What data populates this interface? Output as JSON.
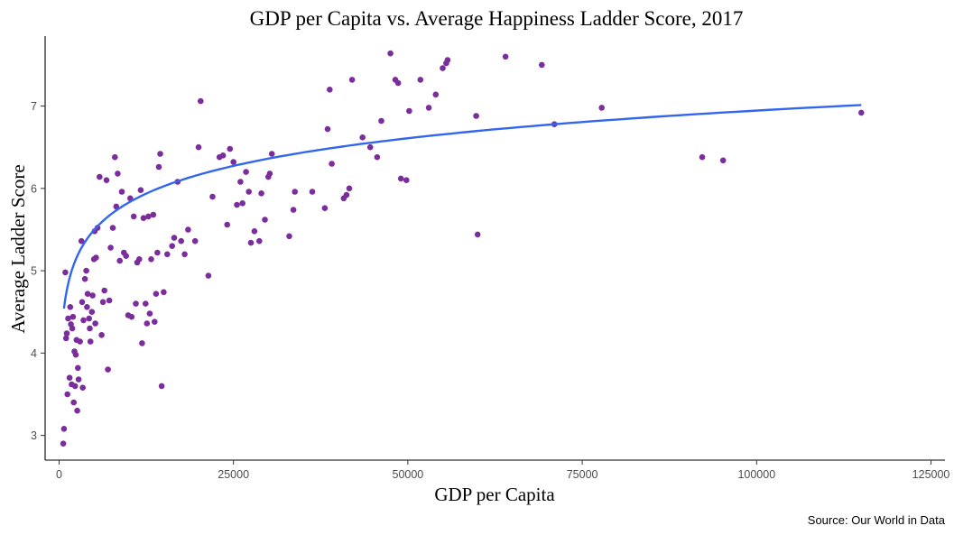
{
  "colors": {
    "point": "#7b2d9c",
    "trend": "#3366ee",
    "axis": "#000000",
    "tick_text": "#4d4d4d"
  },
  "chart_data": {
    "type": "scatter",
    "title": "GDP per Capita vs. Average Happiness Ladder Score, 2017",
    "xlabel": "GDP per Capita",
    "ylabel": "Average Ladder Score",
    "caption": "Source: Our World in Data",
    "xlim": [
      -2000,
      127000
    ],
    "ylim": [
      2.7,
      7.85
    ],
    "x_ticks": [
      0,
      25000,
      50000,
      75000,
      100000,
      125000
    ],
    "x_tick_labels": [
      "0",
      "25000",
      "50000",
      "75000",
      "100000",
      "125000"
    ],
    "y_ticks": [
      3,
      4,
      5,
      6,
      7
    ],
    "y_tick_labels": [
      "3",
      "4",
      "5",
      "6",
      "7"
    ],
    "grid": false,
    "legend": "none",
    "trend": {
      "type": "logarithmic-fit",
      "x_range": [
        700,
        115000
      ],
      "intercept": 1.365,
      "log_coefficient": 0.4847
    },
    "points": [
      {
        "x": 600,
        "y": 2.9
      },
      {
        "x": 700,
        "y": 3.08
      },
      {
        "x": 900,
        "y": 4.98
      },
      {
        "x": 1000,
        "y": 4.18
      },
      {
        "x": 1100,
        "y": 4.24
      },
      {
        "x": 1200,
        "y": 3.5
      },
      {
        "x": 1300,
        "y": 4.42
      },
      {
        "x": 1500,
        "y": 3.7
      },
      {
        "x": 1600,
        "y": 4.56
      },
      {
        "x": 1700,
        "y": 4.35
      },
      {
        "x": 1800,
        "y": 3.62
      },
      {
        "x": 1900,
        "y": 4.3
      },
      {
        "x": 2000,
        "y": 4.44
      },
      {
        "x": 2100,
        "y": 3.4
      },
      {
        "x": 2200,
        "y": 4.02
      },
      {
        "x": 2300,
        "y": 3.6
      },
      {
        "x": 2400,
        "y": 3.98
      },
      {
        "x": 2500,
        "y": 4.16
      },
      {
        "x": 2600,
        "y": 3.3
      },
      {
        "x": 2700,
        "y": 3.82
      },
      {
        "x": 2800,
        "y": 3.68
      },
      {
        "x": 3000,
        "y": 4.14
      },
      {
        "x": 3200,
        "y": 5.36
      },
      {
        "x": 3300,
        "y": 4.62
      },
      {
        "x": 3400,
        "y": 3.58
      },
      {
        "x": 3500,
        "y": 4.4
      },
      {
        "x": 3700,
        "y": 4.9
      },
      {
        "x": 3900,
        "y": 5.0
      },
      {
        "x": 4000,
        "y": 4.56
      },
      {
        "x": 4100,
        "y": 4.72
      },
      {
        "x": 4300,
        "y": 4.42
      },
      {
        "x": 4400,
        "y": 4.3
      },
      {
        "x": 4500,
        "y": 4.14
      },
      {
        "x": 4700,
        "y": 4.5
      },
      {
        "x": 4800,
        "y": 4.7
      },
      {
        "x": 5000,
        "y": 5.14
      },
      {
        "x": 5100,
        "y": 5.48
      },
      {
        "x": 5200,
        "y": 4.36
      },
      {
        "x": 5300,
        "y": 5.16
      },
      {
        "x": 5500,
        "y": 5.52
      },
      {
        "x": 5800,
        "y": 6.14
      },
      {
        "x": 6100,
        "y": 4.22
      },
      {
        "x": 6300,
        "y": 4.62
      },
      {
        "x": 6500,
        "y": 4.76
      },
      {
        "x": 6800,
        "y": 6.1
      },
      {
        "x": 7000,
        "y": 3.8
      },
      {
        "x": 7200,
        "y": 4.64
      },
      {
        "x": 7400,
        "y": 5.28
      },
      {
        "x": 7700,
        "y": 5.52
      },
      {
        "x": 8000,
        "y": 6.38
      },
      {
        "x": 8200,
        "y": 5.78
      },
      {
        "x": 8400,
        "y": 6.18
      },
      {
        "x": 8700,
        "y": 5.12
      },
      {
        "x": 9000,
        "y": 5.96
      },
      {
        "x": 9300,
        "y": 5.22
      },
      {
        "x": 9600,
        "y": 5.18
      },
      {
        "x": 9900,
        "y": 4.46
      },
      {
        "x": 10200,
        "y": 5.88
      },
      {
        "x": 10400,
        "y": 4.44
      },
      {
        "x": 10700,
        "y": 5.66
      },
      {
        "x": 11000,
        "y": 4.6
      },
      {
        "x": 11200,
        "y": 5.1
      },
      {
        "x": 11500,
        "y": 5.14
      },
      {
        "x": 11700,
        "y": 5.98
      },
      {
        "x": 11900,
        "y": 4.12
      },
      {
        "x": 12100,
        "y": 5.64
      },
      {
        "x": 12400,
        "y": 4.6
      },
      {
        "x": 12600,
        "y": 4.36
      },
      {
        "x": 12800,
        "y": 5.66
      },
      {
        "x": 13000,
        "y": 4.48
      },
      {
        "x": 13200,
        "y": 5.14
      },
      {
        "x": 13500,
        "y": 5.68
      },
      {
        "x": 13700,
        "y": 4.38
      },
      {
        "x": 13900,
        "y": 4.72
      },
      {
        "x": 14100,
        "y": 5.22
      },
      {
        "x": 14300,
        "y": 6.26
      },
      {
        "x": 14500,
        "y": 6.42
      },
      {
        "x": 14700,
        "y": 3.6
      },
      {
        "x": 15000,
        "y": 4.74
      },
      {
        "x": 15500,
        "y": 5.2
      },
      {
        "x": 16200,
        "y": 5.3
      },
      {
        "x": 16500,
        "y": 5.4
      },
      {
        "x": 17000,
        "y": 6.08
      },
      {
        "x": 17500,
        "y": 5.36
      },
      {
        "x": 18000,
        "y": 5.2
      },
      {
        "x": 18500,
        "y": 5.5
      },
      {
        "x": 19500,
        "y": 5.36
      },
      {
        "x": 20000,
        "y": 6.5
      },
      {
        "x": 20300,
        "y": 7.06
      },
      {
        "x": 21400,
        "y": 4.94
      },
      {
        "x": 22000,
        "y": 5.9
      },
      {
        "x": 23000,
        "y": 6.38
      },
      {
        "x": 23500,
        "y": 6.4
      },
      {
        "x": 24100,
        "y": 5.56
      },
      {
        "x": 24500,
        "y": 6.48
      },
      {
        "x": 25000,
        "y": 6.32
      },
      {
        "x": 25500,
        "y": 5.8
      },
      {
        "x": 26000,
        "y": 6.08
      },
      {
        "x": 26300,
        "y": 5.82
      },
      {
        "x": 26800,
        "y": 6.2
      },
      {
        "x": 27200,
        "y": 5.96
      },
      {
        "x": 27500,
        "y": 5.34
      },
      {
        "x": 28000,
        "y": 5.48
      },
      {
        "x": 28700,
        "y": 5.36
      },
      {
        "x": 29000,
        "y": 5.94
      },
      {
        "x": 29500,
        "y": 5.62
      },
      {
        "x": 30000,
        "y": 6.14
      },
      {
        "x": 30200,
        "y": 6.18
      },
      {
        "x": 30500,
        "y": 6.42
      },
      {
        "x": 33000,
        "y": 5.42
      },
      {
        "x": 33600,
        "y": 5.74
      },
      {
        "x": 33800,
        "y": 5.96
      },
      {
        "x": 36300,
        "y": 5.96
      },
      {
        "x": 38100,
        "y": 5.76
      },
      {
        "x": 38500,
        "y": 6.72
      },
      {
        "x": 38800,
        "y": 7.2
      },
      {
        "x": 39100,
        "y": 6.3
      },
      {
        "x": 40800,
        "y": 5.88
      },
      {
        "x": 41200,
        "y": 5.92
      },
      {
        "x": 41600,
        "y": 6.0
      },
      {
        "x": 42000,
        "y": 7.32
      },
      {
        "x": 43500,
        "y": 6.62
      },
      {
        "x": 44600,
        "y": 6.5
      },
      {
        "x": 45600,
        "y": 6.38
      },
      {
        "x": 46200,
        "y": 6.82
      },
      {
        "x": 47500,
        "y": 7.64
      },
      {
        "x": 48200,
        "y": 7.32
      },
      {
        "x": 48600,
        "y": 7.28
      },
      {
        "x": 49000,
        "y": 6.12
      },
      {
        "x": 49800,
        "y": 6.1
      },
      {
        "x": 50200,
        "y": 6.94
      },
      {
        "x": 51800,
        "y": 7.32
      },
      {
        "x": 53000,
        "y": 6.98
      },
      {
        "x": 54000,
        "y": 7.14
      },
      {
        "x": 55000,
        "y": 7.46
      },
      {
        "x": 55500,
        "y": 7.52
      },
      {
        "x": 55700,
        "y": 7.56
      },
      {
        "x": 59800,
        "y": 6.88
      },
      {
        "x": 60000,
        "y": 5.44
      },
      {
        "x": 64000,
        "y": 7.6
      },
      {
        "x": 69200,
        "y": 7.5
      },
      {
        "x": 71000,
        "y": 6.78
      },
      {
        "x": 77800,
        "y": 6.98
      },
      {
        "x": 92200,
        "y": 6.38
      },
      {
        "x": 95200,
        "y": 6.34
      },
      {
        "x": 115000,
        "y": 6.92
      }
    ]
  }
}
